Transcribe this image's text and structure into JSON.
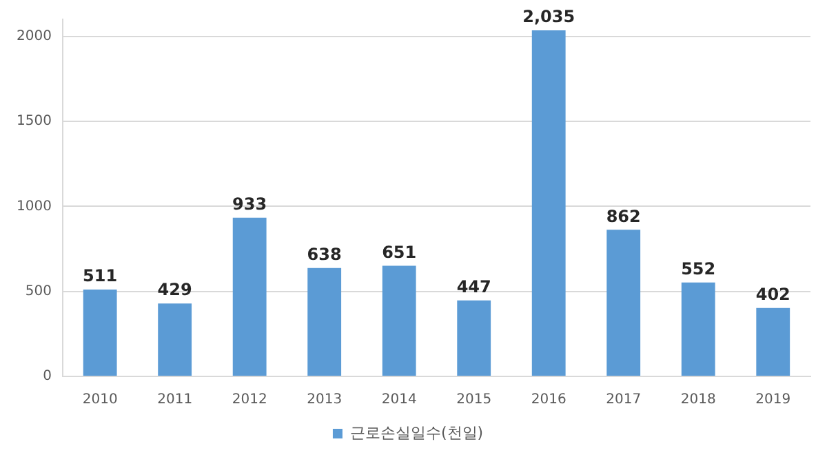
{
  "chart_data": {
    "type": "bar",
    "categories": [
      "2010",
      "2011",
      "2012",
      "2013",
      "2014",
      "2015",
      "2016",
      "2017",
      "2018",
      "2019"
    ],
    "series": [
      {
        "name": "근로손실일수(천일)",
        "color": "#5b9bd5",
        "values": [
          511,
          429,
          933,
          638,
          651,
          447,
          2035,
          862,
          552,
          402
        ],
        "value_labels": [
          "511",
          "429",
          "933",
          "638",
          "651",
          "447",
          "2,035",
          "862",
          "552",
          "402"
        ]
      }
    ],
    "ylim": [
      0,
      2100
    ],
    "yticks": [
      0,
      500,
      1000,
      1500,
      2000
    ],
    "grid": "y",
    "legend": "bottom"
  }
}
